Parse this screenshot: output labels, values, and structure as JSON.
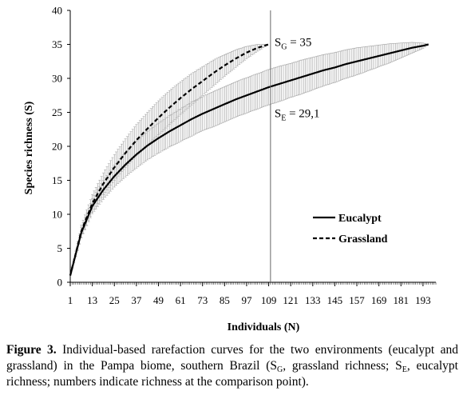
{
  "chart_data": {
    "type": "line",
    "xlabel": "Individuals  (N)",
    "ylabel": "Species richness (S)",
    "xlim": [
      1,
      200
    ],
    "ylim": [
      0,
      40
    ],
    "x_ticks": [
      1,
      13,
      25,
      37,
      49,
      61,
      73,
      85,
      97,
      109,
      121,
      133,
      145,
      157,
      169,
      181,
      193
    ],
    "y_ticks": [
      0,
      5,
      10,
      15,
      20,
      25,
      30,
      35,
      40
    ],
    "error_bars": true,
    "legend_position": "bottom-right",
    "grid": false,
    "series": [
      {
        "name": "Eucalypt",
        "style": "solid",
        "x": [
          1,
          7,
          13,
          19,
          25,
          31,
          37,
          43,
          49,
          55,
          61,
          67,
          73,
          79,
          85,
          91,
          97,
          103,
          109,
          115,
          121,
          127,
          133,
          139,
          145,
          151,
          157,
          163,
          169,
          175,
          181,
          187,
          193,
          196
        ],
        "y": [
          1,
          7.3,
          11.2,
          13.6,
          15.6,
          17.3,
          18.8,
          20.1,
          21.2,
          22.2,
          23.1,
          24.0,
          24.8,
          25.5,
          26.2,
          26.9,
          27.5,
          28.1,
          28.7,
          29.2,
          29.7,
          30.2,
          30.7,
          31.2,
          31.6,
          32.1,
          32.5,
          32.9,
          33.3,
          33.7,
          34.1,
          34.5,
          34.8,
          35.0
        ],
        "error": [
          0,
          0.8,
          1.1,
          1.4,
          1.6,
          1.8,
          2.0,
          2.1,
          2.2,
          2.3,
          2.4,
          2.5,
          2.5,
          2.6,
          2.6,
          2.6,
          2.6,
          2.6,
          2.6,
          2.6,
          2.5,
          2.5,
          2.4,
          2.3,
          2.2,
          2.1,
          2.0,
          1.8,
          1.6,
          1.4,
          1.1,
          0.8,
          0.4,
          0
        ]
      },
      {
        "name": "Grassland",
        "style": "dashed",
        "x": [
          1,
          7,
          13,
          19,
          25,
          31,
          37,
          43,
          49,
          55,
          61,
          67,
          73,
          79,
          85,
          91,
          97,
          103,
          109
        ],
        "y": [
          1,
          7.5,
          11.6,
          14.5,
          16.9,
          19.0,
          20.9,
          22.6,
          24.2,
          25.7,
          27.1,
          28.4,
          29.6,
          30.8,
          31.9,
          32.9,
          33.8,
          34.5,
          35.0
        ],
        "error": [
          0,
          0.9,
          1.3,
          1.6,
          1.9,
          2.1,
          2.3,
          2.4,
          2.5,
          2.5,
          2.4,
          2.3,
          2.1,
          1.9,
          1.6,
          1.3,
          0.9,
          0.5,
          0
        ]
      }
    ],
    "reference_line": {
      "x": 110
    },
    "annotations": [
      {
        "main": "S",
        "sub": "G",
        "rest": " = 35",
        "x": 110,
        "y": 35
      },
      {
        "main": "S",
        "sub": "E",
        "rest": " = 29,1",
        "x": 110,
        "y": 29.1
      }
    ]
  },
  "caption": {
    "label": "Figure 3.",
    "text": "Individual-based rarefaction curves for the two environments (eucalypt and grassland) in the Pampa biome, southern Brazil (S",
    "sub_g": "G",
    "text2": ", grassland richness; S",
    "sub_e": "E",
    "text3": ", eucalypt richness; numbers indicate richness at the comparison point)."
  }
}
